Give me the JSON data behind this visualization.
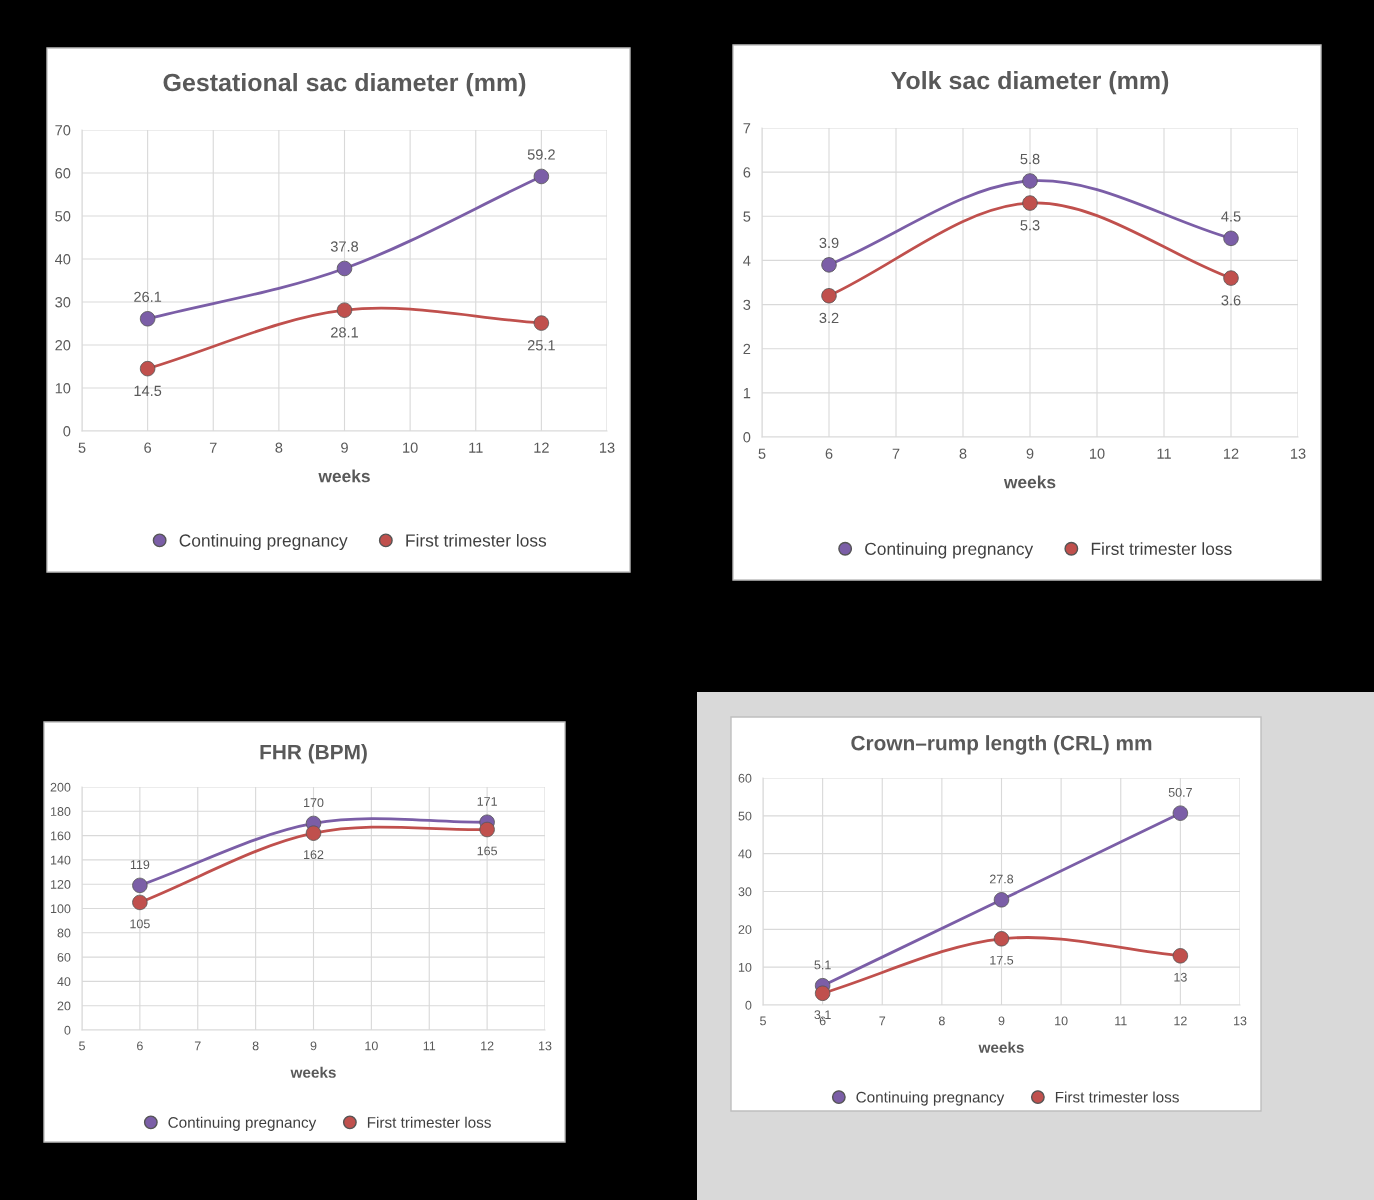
{
  "chart_data": [
    {
      "type": "line",
      "title": "Gestational sac diameter (mm)",
      "xlabel": "weeks",
      "x": [
        6,
        9,
        12
      ],
      "xlim": [
        5,
        13
      ],
      "xticks": [
        5,
        6,
        7,
        8,
        9,
        10,
        11,
        12,
        13
      ],
      "ylim": [
        0,
        70
      ],
      "yticks": [
        0,
        10,
        20,
        30,
        40,
        50,
        60,
        70
      ],
      "grid": true,
      "legend": "bottom",
      "marker": "circle",
      "data_labels": true,
      "series": [
        {
          "name": "Continuing pregnancy",
          "color": "#7b5ea7",
          "values": [
            26.1,
            37.8,
            59.2
          ]
        },
        {
          "name": "First trimester loss",
          "color": "#c0504d",
          "values": [
            14.5,
            28.1,
            25.1
          ]
        }
      ]
    },
    {
      "type": "line",
      "title": "Yolk sac diameter (mm)",
      "xlabel": "weeks",
      "x": [
        6,
        9,
        12
      ],
      "xlim": [
        5,
        13
      ],
      "xticks": [
        5,
        6,
        7,
        8,
        9,
        10,
        11,
        12,
        13
      ],
      "ylim": [
        0,
        7
      ],
      "yticks": [
        0,
        1,
        2,
        3,
        4,
        5,
        6,
        7
      ],
      "grid": true,
      "legend": "bottom",
      "marker": "circle",
      "data_labels": true,
      "series": [
        {
          "name": "Continuing pregnancy",
          "color": "#7b5ea7",
          "values": [
            3.9,
            5.8,
            4.5
          ]
        },
        {
          "name": "First trimester loss",
          "color": "#c0504d",
          "values": [
            3.2,
            5.3,
            3.6
          ]
        }
      ]
    },
    {
      "type": "line",
      "title": "FHR (BPM)",
      "xlabel": "weeks",
      "x": [
        6,
        9,
        12
      ],
      "xlim": [
        5,
        13
      ],
      "xticks": [
        5,
        6,
        7,
        8,
        9,
        10,
        11,
        12,
        13
      ],
      "ylim": [
        0,
        200
      ],
      "yticks": [
        0,
        20,
        40,
        60,
        80,
        100,
        120,
        140,
        160,
        180,
        200
      ],
      "grid": true,
      "legend": "bottom",
      "marker": "circle",
      "data_labels": true,
      "series": [
        {
          "name": "Continuing pregnancy",
          "color": "#7b5ea7",
          "values": [
            119,
            170,
            171
          ]
        },
        {
          "name": "First trimester loss",
          "color": "#c0504d",
          "values": [
            105,
            162,
            165
          ]
        }
      ]
    },
    {
      "type": "line",
      "title": "Crown–rump length (CRL) mm",
      "xlabel": "weeks",
      "x": [
        6,
        9,
        12
      ],
      "xlim": [
        5,
        13
      ],
      "xticks": [
        5,
        6,
        7,
        8,
        9,
        10,
        11,
        12,
        13
      ],
      "ylim": [
        0,
        60
      ],
      "yticks": [
        0,
        10,
        20,
        30,
        40,
        50,
        60
      ],
      "grid": true,
      "legend": "bottom",
      "marker": "circle",
      "data_labels": true,
      "series": [
        {
          "name": "Continuing pregnancy",
          "color": "#7b5ea7",
          "values": [
            5.1,
            27.8,
            50.7
          ]
        },
        {
          "name": "First trimester loss",
          "color": "#c0504d",
          "values": [
            3.1,
            17.5,
            13
          ]
        }
      ]
    }
  ]
}
